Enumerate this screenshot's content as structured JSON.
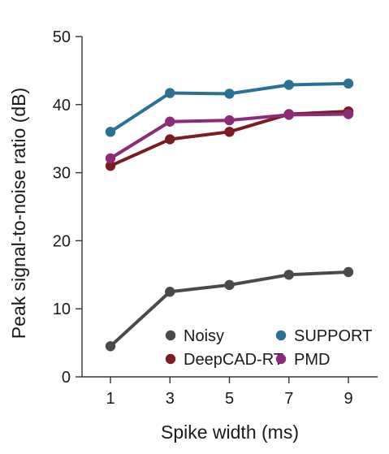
{
  "chart_data": {
    "type": "line",
    "xlabel": "Spike width (ms)",
    "ylabel": "Peak signal-to-noise ratio (dB)",
    "x": [
      1,
      3,
      5,
      7,
      9
    ],
    "xticks": [
      "1",
      "3",
      "5",
      "7",
      "9"
    ],
    "yticks": [
      "0",
      "10",
      "20",
      "30",
      "40",
      "50"
    ],
    "ylim": [
      0,
      50
    ],
    "grid": false,
    "legend_position": "bottom-right",
    "series": [
      {
        "name": "Noisy",
        "color": "#4a4a4a",
        "values": [
          4.5,
          12.5,
          13.5,
          15.0,
          15.4
        ]
      },
      {
        "name": "SUPPORT",
        "color": "#2b7196",
        "values": [
          36.0,
          41.7,
          41.6,
          42.9,
          43.1
        ]
      },
      {
        "name": "DeepCAD-RT",
        "color": "#7b1b22",
        "values": [
          31.0,
          34.9,
          36.0,
          38.6,
          39.0
        ]
      },
      {
        "name": "PMD",
        "color": "#8e2a7a",
        "values": [
          32.1,
          37.5,
          37.7,
          38.5,
          38.6
        ]
      }
    ]
  }
}
